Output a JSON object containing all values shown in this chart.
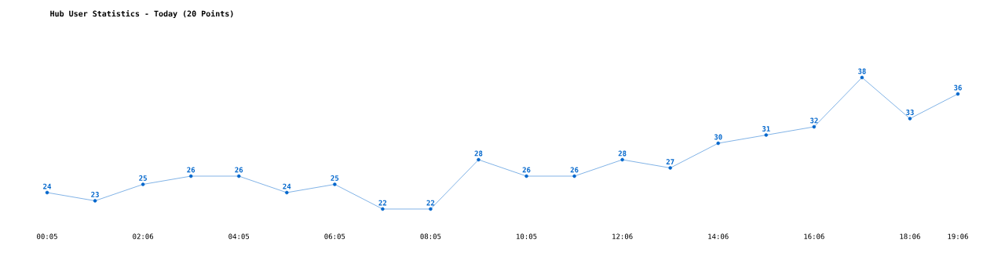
{
  "chart_data": {
    "type": "line",
    "title": "Hub User Statistics - Today (20 Points)",
    "categories": [
      "00:05",
      null,
      "02:06",
      null,
      "04:05",
      null,
      "06:05",
      null,
      "08:05",
      null,
      "10:05",
      null,
      "12:06",
      null,
      "14:06",
      null,
      "16:06",
      null,
      "18:06",
      "19:06"
    ],
    "series": [
      {
        "color": "#0066cc",
        "values": [
          24,
          23,
          25,
          26,
          26,
          24,
          25,
          22,
          22,
          28,
          26,
          26,
          28,
          27,
          30,
          31,
          32,
          38,
          33,
          36
        ]
      }
    ],
    "data_labels": true,
    "marker": "circle",
    "line_style": "solid"
  }
}
